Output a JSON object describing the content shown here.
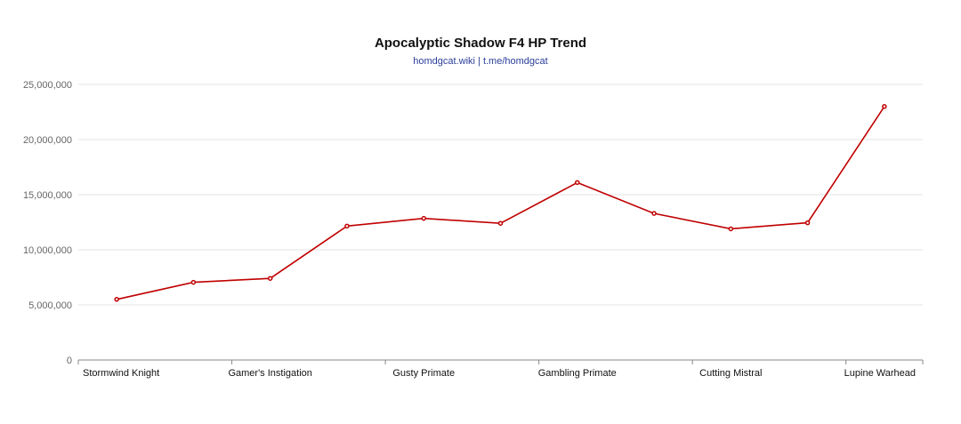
{
  "chart_data": {
    "type": "line",
    "title": "Apocalyptic Shadow F4 HP Trend",
    "subtitle": "homdgcat.wiki | t.me/homdgcat",
    "x": [
      "Stormwind Knight",
      "",
      "Gamer's Instigation",
      "",
      "Gusty Primate",
      "",
      "Gambling Primate",
      "",
      "Cutting Mistral",
      "",
      "Lupine Warhead"
    ],
    "x_tick_labels": [
      "Stormwind Knight",
      "Gamer's Instigation",
      "Gusty Primate",
      "Gambling Primate",
      "Cutting Mistral",
      "Lupine Warhead"
    ],
    "series": [
      {
        "values": [
          5500000,
          7050000,
          7400000,
          12150000,
          12850000,
          12400000,
          16100000,
          13300000,
          11900000,
          12450000,
          23000000
        ]
      }
    ],
    "ylim": [
      0,
      25000000
    ],
    "y_ticks": [
      0,
      5000000,
      10000000,
      15000000,
      20000000,
      25000000
    ],
    "y_tick_labels": [
      "0",
      "5,000,000",
      "10,000,000",
      "15,000,000",
      "20,000,000",
      "25,000,000"
    ],
    "xlabel": "",
    "ylabel": "",
    "grid": true,
    "colors": {
      "series": "#c00000",
      "grid": "#e3e3e3",
      "axis": "#888888",
      "subtitle": "#2a3f9a"
    }
  }
}
